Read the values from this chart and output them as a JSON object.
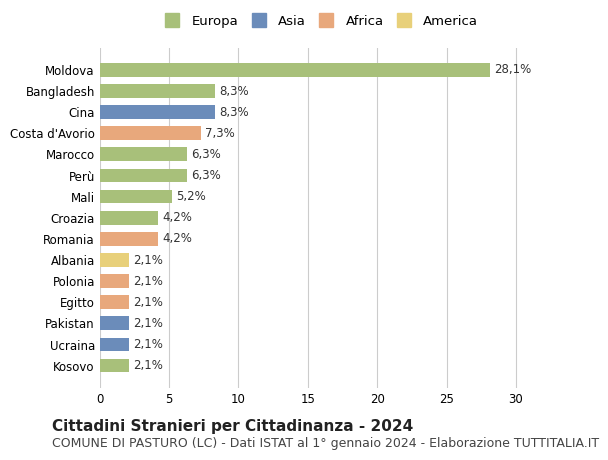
{
  "categories": [
    "Kosovo",
    "Ucraina",
    "Pakistan",
    "Egitto",
    "Polonia",
    "Albania",
    "Romania",
    "Croazia",
    "Mali",
    "Perù",
    "Marocco",
    "Costa d'Avorio",
    "Cina",
    "Bangladesh",
    "Moldova"
  ],
  "values": [
    28.1,
    8.3,
    8.3,
    7.3,
    6.3,
    6.3,
    5.2,
    4.2,
    4.2,
    2.1,
    2.1,
    2.1,
    2.1,
    2.1,
    2.1
  ],
  "labels": [
    "28,1%",
    "8,3%",
    "8,3%",
    "7,3%",
    "6,3%",
    "6,3%",
    "5,2%",
    "4,2%",
    "4,2%",
    "2,1%",
    "2,1%",
    "2,1%",
    "2,1%",
    "2,1%",
    "2,1%"
  ],
  "continents": [
    "Europa",
    "Europa",
    "Asia",
    "Africa",
    "Europa",
    "Europa",
    "Europa",
    "Europa",
    "Africa",
    "America",
    "Africa",
    "Africa",
    "Asia",
    "Asia",
    "Europa"
  ],
  "continent_colors": {
    "Europa": "#a8c07a",
    "Asia": "#6b8cba",
    "Africa": "#e8a87c",
    "America": "#e8d07a"
  },
  "legend_order": [
    "Europa",
    "Asia",
    "Africa",
    "America"
  ],
  "title": "Cittadini Stranieri per Cittadinanza - 2024",
  "subtitle": "COMUNE DI PASTURO (LC) - Dati ISTAT al 1° gennaio 2024 - Elaborazione TUTTITALIA.IT",
  "xlim": [
    0,
    32
  ],
  "xticks": [
    0,
    5,
    10,
    15,
    20,
    25,
    30
  ],
  "background_color": "#ffffff",
  "grid_color": "#cccccc",
  "bar_height": 0.65,
  "title_fontsize": 11,
  "subtitle_fontsize": 9,
  "label_fontsize": 8.5,
  "tick_fontsize": 8.5,
  "legend_fontsize": 9.5
}
